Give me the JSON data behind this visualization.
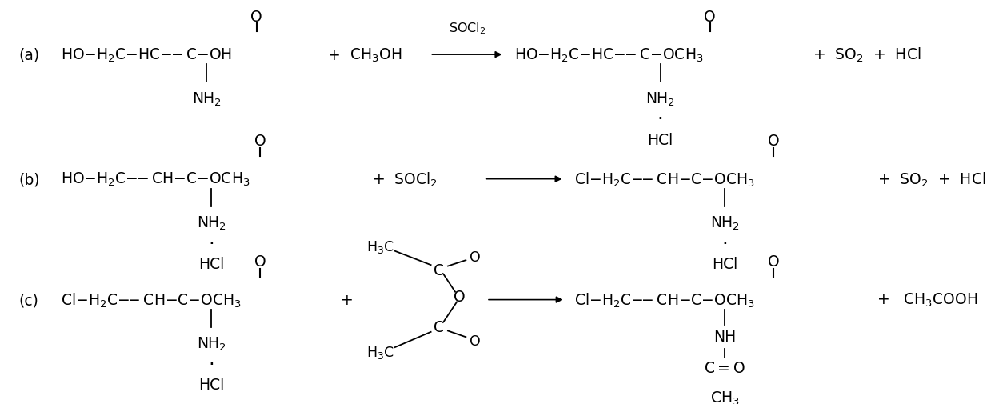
{
  "bg_color": "#ffffff",
  "fs": 13.5,
  "fs_sub": 11.5,
  "fs_label": 13.5,
  "fs_reagent": 11.5,
  "rows": [
    {
      "label": "(a)",
      "ya": 0.855
    },
    {
      "label": "(b)",
      "ya": 0.52
    },
    {
      "label": "(c)",
      "ya": 0.185
    }
  ]
}
